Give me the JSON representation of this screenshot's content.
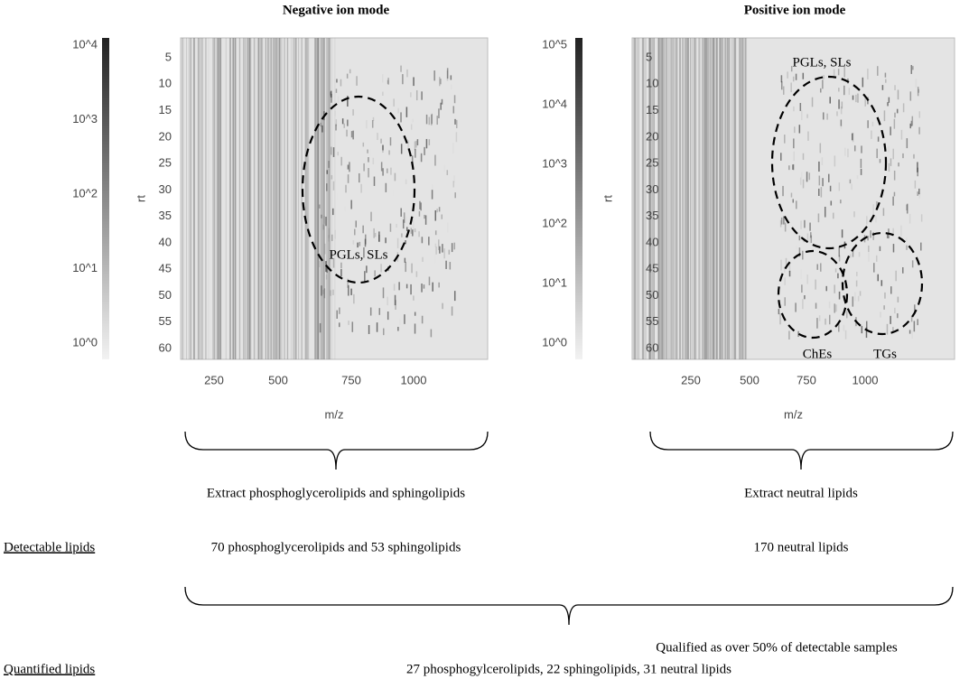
{
  "panels": [
    {
      "title": "Negative ion mode",
      "colorbar_labels": [
        "10^4",
        "10^3",
        "10^2",
        "10^1",
        "10^0"
      ],
      "y_label": "rt",
      "y_ticks": [
        "5",
        "10",
        "15",
        "20",
        "25",
        "30",
        "35",
        "40",
        "45",
        "50",
        "55",
        "60"
      ],
      "x_label": "m/z",
      "x_ticks": [
        "250",
        "500",
        "750",
        "1000"
      ],
      "annotations": [
        "PGLs, SLs"
      ],
      "extract": "Extract phosphoglycerolipids and sphingolipids",
      "detectable": "70 phosphoglycerolipids and 53 sphingolipids"
    },
    {
      "title": "Positive ion mode",
      "colorbar_labels": [
        "10^5",
        "10^4",
        "10^3",
        "10^2",
        "10^1",
        "10^0"
      ],
      "y_label": "rt",
      "y_ticks": [
        "5",
        "10",
        "15",
        "20",
        "25",
        "30",
        "35",
        "40",
        "45",
        "50",
        "55",
        "60"
      ],
      "x_label": "m/z",
      "x_ticks": [
        "250",
        "500",
        "750",
        "1000"
      ],
      "annotations": [
        "PGLs, SLs",
        "ChEs",
        "TGs"
      ],
      "extract": "Extract neutral lipids",
      "detectable": "170 neutral lipids"
    }
  ],
  "rows": {
    "detectable_label": "Detectable lipids",
    "qualified": "Qualified as over 50% of detectable samples",
    "quantified_label": "Quantified lipids",
    "quantified": "27 phosphogylcerolipids, 22 sphingolipids, 31 neutral lipids"
  }
}
